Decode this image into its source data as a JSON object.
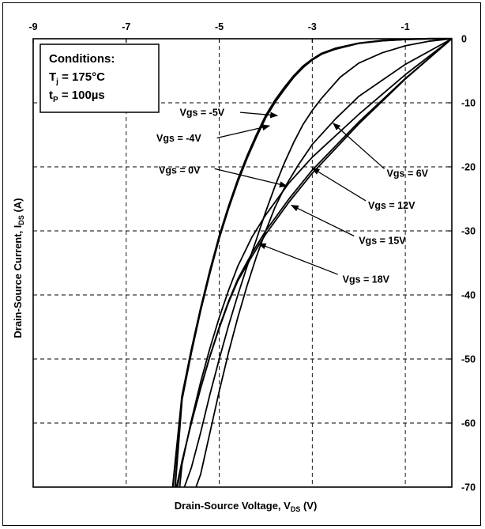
{
  "chart_data": {
    "type": "line",
    "title": "",
    "xlabel": {
      "main": "Drain-Source Voltage, V",
      "sub": "DS",
      "unit": " (V)"
    },
    "ylabel": {
      "main": "Drain-Source Current, I",
      "sub": "DS",
      "unit": " (A)"
    },
    "xlim": [
      -9,
      0
    ],
    "ylim": [
      -70,
      0
    ],
    "x_ticks": [
      -9,
      -7,
      -5,
      -3,
      -1
    ],
    "y_ticks": [
      0,
      -10,
      -20,
      -30,
      -40,
      -50,
      -60,
      -70
    ],
    "grid": true,
    "conditions": {
      "heading": "Conditions:",
      "line1": {
        "main": "T",
        "sub": "j",
        "rest": " = 175°C"
      },
      "line2": {
        "main": "t",
        "sub": "P",
        "rest": " = 100µs"
      }
    },
    "series": [
      {
        "name": "Vgs = -5V",
        "x": [
          0,
          -0.5,
          -1.0,
          -1.5,
          -2.0,
          -2.5,
          -2.8,
          -3.0,
          -3.2,
          -3.4,
          -3.6,
          -3.8,
          -4.0,
          -4.2,
          -4.4,
          -4.6,
          -4.8,
          -5.0,
          -5.2,
          -5.4,
          -5.6,
          -5.8,
          -6.0
        ],
        "y": [
          0,
          0,
          -0.1,
          -0.3,
          -0.7,
          -1.5,
          -2.3,
          -3.2,
          -4.3,
          -5.8,
          -7.6,
          -9.6,
          -12.0,
          -15.0,
          -18.3,
          -22.0,
          -26.2,
          -30.8,
          -36.2,
          -42.1,
          -48.6,
          -55.8,
          -70
        ]
      },
      {
        "name": "Vgs = -4V",
        "x": [
          0,
          -0.5,
          -1.0,
          -1.5,
          -2.0,
          -2.5,
          -2.8,
          -3.0,
          -3.2,
          -3.4,
          -3.6,
          -3.8,
          -4.0,
          -4.2,
          -4.4,
          -4.6,
          -4.8,
          -5.0,
          -5.2,
          -5.4,
          -5.6,
          -5.8,
          -5.95
        ],
        "y": [
          0,
          0,
          -0.1,
          -0.3,
          -0.7,
          -1.6,
          -2.4,
          -3.3,
          -4.5,
          -6.0,
          -7.9,
          -9.9,
          -12.3,
          -15.3,
          -18.6,
          -22.3,
          -26.5,
          -31.1,
          -36.5,
          -42.4,
          -49.0,
          -56.3,
          -70
        ]
      },
      {
        "name": "Vgs = 0V",
        "x": [
          0,
          -0.5,
          -1.0,
          -1.5,
          -2.0,
          -2.4,
          -2.8,
          -3.0,
          -3.2,
          -3.4,
          -3.6,
          -3.8,
          -4.0,
          -4.2,
          -4.4,
          -4.6,
          -4.8,
          -5.0,
          -5.2,
          -5.4,
          -5.6,
          -5.75
        ],
        "y": [
          0,
          -0.4,
          -1.1,
          -2.2,
          -3.8,
          -6.0,
          -9.3,
          -11.2,
          -13.4,
          -16.2,
          -19.4,
          -23.0,
          -27.0,
          -31.3,
          -35.5,
          -40.0,
          -44.8,
          -50.0,
          -55.5,
          -61.5,
          -67.0,
          -70
        ]
      },
      {
        "name": "Vgs = 6V",
        "x": [
          0,
          -1.0,
          -2.0,
          -2.5,
          -3.0,
          -3.3,
          -3.6,
          -3.8,
          -4.0,
          -4.2,
          -4.4,
          -4.6,
          -4.8,
          -5.0,
          -5.2,
          -5.4,
          -5.5
        ],
        "y": [
          0,
          -4.0,
          -9.0,
          -12.5,
          -16.5,
          -19.7,
          -23.3,
          -26.3,
          -30.0,
          -34.0,
          -38.5,
          -43.5,
          -49.0,
          -55.0,
          -61.5,
          -68.0,
          -70
        ]
      },
      {
        "name": "Vgs = 12V",
        "x": [
          0,
          -1.0,
          -2.0,
          -3.0,
          -3.5,
          -4.0,
          -4.3,
          -4.6,
          -4.8,
          -5.0,
          -5.2,
          -5.4,
          -5.6,
          -5.8,
          -5.85
        ],
        "y": [
          0,
          -5.6,
          -11.8,
          -18.5,
          -22.5,
          -27.5,
          -31.0,
          -35.5,
          -39.3,
          -43.5,
          -48.3,
          -53.6,
          -59.6,
          -66.5,
          -70
        ]
      },
      {
        "name": "Vgs = 15V",
        "x": [
          0,
          -1.0,
          -2.0,
          -3.0,
          -3.5,
          -4.0,
          -4.3,
          -4.6,
          -4.8,
          -5.0,
          -5.2,
          -5.4,
          -5.6,
          -5.8,
          -5.9
        ],
        "y": [
          0,
          -6.2,
          -13.0,
          -20.5,
          -25.0,
          -30.0,
          -33.5,
          -37.5,
          -41.0,
          -45.0,
          -49.5,
          -54.5,
          -60.0,
          -66.0,
          -70
        ]
      },
      {
        "name": "Vgs = 18V",
        "x": [
          0,
          -1.0,
          -2.0,
          -3.0,
          -3.5,
          -4.0,
          -4.3,
          -4.6,
          -4.8,
          -5.0,
          -5.2,
          -5.4,
          -5.6,
          -5.8,
          -5.92
        ],
        "y": [
          0,
          -6.3,
          -13.3,
          -21.0,
          -25.5,
          -30.5,
          -34.0,
          -37.8,
          -41.2,
          -45.2,
          -49.6,
          -54.6,
          -60.0,
          -66.0,
          -70
        ]
      }
    ],
    "annotations": [
      {
        "label": "Vgs = -5V",
        "tx": -5.85,
        "ty": -11.5,
        "anchor": "start",
        "lx1": -4.55,
        "ly1": -11.5,
        "lx2": -3.75,
        "ly2": -12.0
      },
      {
        "label": "Vgs = -4V",
        "tx": -6.35,
        "ty": -15.5,
        "anchor": "start",
        "lx1": -5.05,
        "ly1": -15.5,
        "lx2": -3.92,
        "ly2": -13.6
      },
      {
        "label": "Vgs = 0V",
        "tx": -6.3,
        "ty": -20.5,
        "anchor": "start",
        "lx1": -5.1,
        "ly1": -20.3,
        "lx2": -3.55,
        "ly2": -23.0
      },
      {
        "label": "Vgs = 6V",
        "tx": -1.4,
        "ty": -21.0,
        "anchor": "start",
        "lx1": -1.45,
        "ly1": -20.3,
        "lx2": -2.55,
        "ly2": -13.2
      },
      {
        "label": "Vgs = 12V",
        "tx": -1.8,
        "ty": -26.0,
        "anchor": "start",
        "lx1": -1.85,
        "ly1": -25.3,
        "lx2": -3.0,
        "ly2": -20.2
      },
      {
        "label": "Vgs = 15V",
        "tx": -2.0,
        "ty": -31.5,
        "anchor": "start",
        "lx1": -2.1,
        "ly1": -30.8,
        "lx2": -3.45,
        "ly2": -26.0
      },
      {
        "label": "Vgs = 18V",
        "tx": -2.35,
        "ty": -37.5,
        "anchor": "start",
        "lx1": -2.45,
        "ly1": -36.8,
        "lx2": -4.15,
        "ly2": -32.0
      }
    ]
  }
}
